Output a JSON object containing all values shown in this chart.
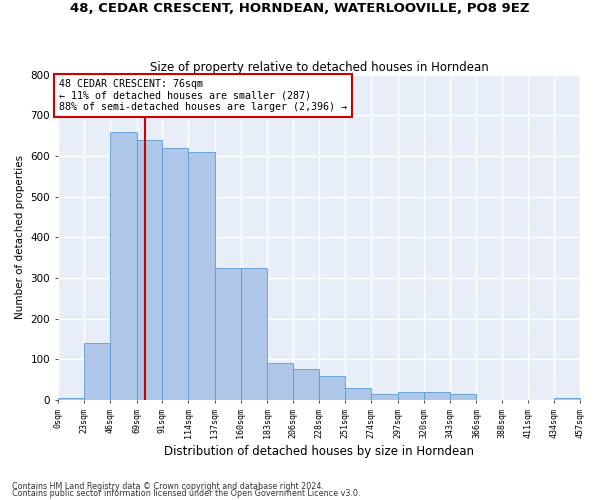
{
  "title1": "48, CEDAR CRESCENT, HORNDEAN, WATERLOOVILLE, PO8 9EZ",
  "title2": "Size of property relative to detached houses in Horndean",
  "xlabel": "Distribution of detached houses by size in Horndean",
  "ylabel": "Number of detached properties",
  "footnote1": "Contains HM Land Registry data © Crown copyright and database right 2024.",
  "footnote2": "Contains public sector information licensed under the Open Government Licence v3.0.",
  "annotation_line1": "48 CEDAR CRESCENT: 76sqm",
  "annotation_line2": "← 11% of detached houses are smaller (287)",
  "annotation_line3": "88% of semi-detached houses are larger (2,396) →",
  "property_sqm": 76,
  "bin_edges": [
    0,
    23,
    46,
    69,
    91,
    114,
    137,
    160,
    183,
    206,
    228,
    251,
    274,
    297,
    320,
    343,
    366,
    388,
    411,
    434,
    457
  ],
  "bin_labels": [
    "0sqm",
    "23sqm",
    "46sqm",
    "69sqm",
    "91sqm",
    "114sqm",
    "137sqm",
    "160sqm",
    "183sqm",
    "206sqm",
    "228sqm",
    "251sqm",
    "274sqm",
    "297sqm",
    "320sqm",
    "343sqm",
    "366sqm",
    "388sqm",
    "411sqm",
    "434sqm",
    "457sqm"
  ],
  "bar_heights": [
    5,
    140,
    660,
    640,
    620,
    610,
    325,
    325,
    90,
    75,
    60,
    30,
    15,
    20,
    20,
    15,
    0,
    0,
    0,
    5,
    0
  ],
  "bar_color": "#aec6e8",
  "bar_edge_color": "#5b9bd5",
  "fig_bg_color": "#ffffff",
  "ax_bg_color": "#e8eef8",
  "grid_color": "#ffffff",
  "vline_color": "#cc0000",
  "annotation_box_color": "#cc0000",
  "ylim": [
    0,
    800
  ],
  "yticks": [
    0,
    100,
    200,
    300,
    400,
    500,
    600,
    700,
    800
  ]
}
